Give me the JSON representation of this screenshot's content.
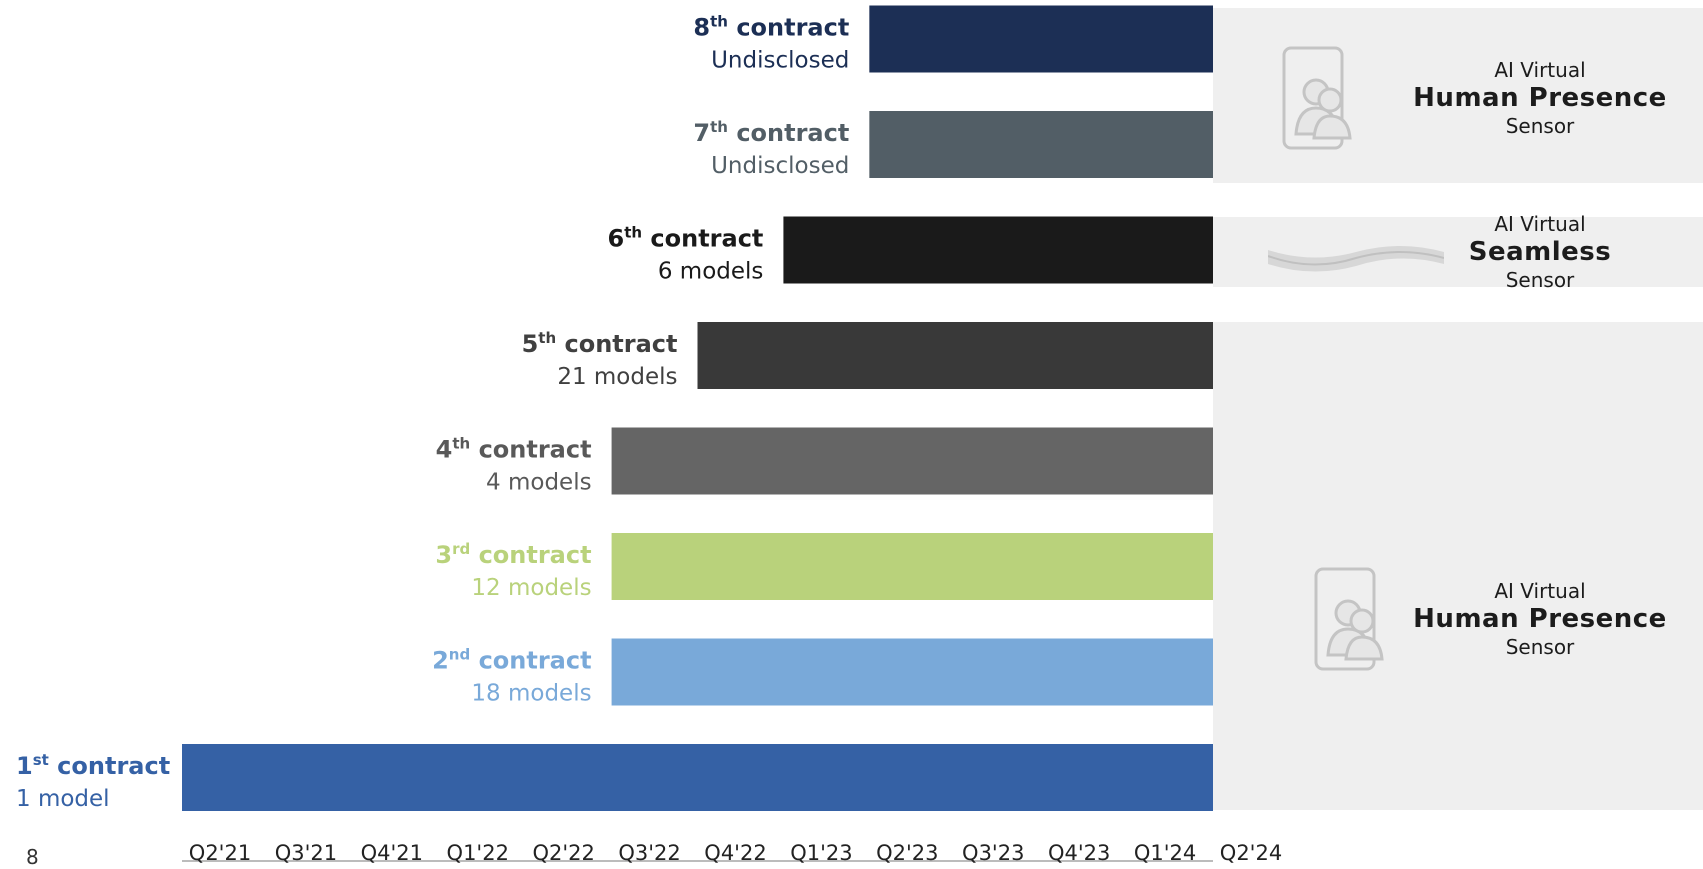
{
  "page_number": "8",
  "categories": {
    "top": {
      "line1": "AI Virtual",
      "line2": "Human Presence",
      "line3": "Sensor"
    },
    "mid": {
      "line1": "AI Virtual",
      "line2": "Seamless",
      "line3": "Sensor"
    },
    "bot": {
      "line1": "AI Virtual",
      "line2": "Human Presence",
      "line3": "Sensor"
    }
  },
  "icons": {
    "presence": "person-phone-icon",
    "seamless": "wave-band-icon"
  },
  "colors": {
    "c1": "#3561a5",
    "c2": "#79a9d9",
    "c3": "#b9d27b",
    "c4": "#656565",
    "c5": "#393939",
    "c6": "#1a1a1a",
    "c7": "#525e66",
    "c8": "#1c2f55",
    "panel": "#efefef",
    "axis_line": "#a6a6a6"
  },
  "chart_data": {
    "type": "bar",
    "orientation": "horizontal",
    "x_ticks": [
      "Q2'21",
      "Q3'21",
      "Q4'21",
      "Q1'22",
      "Q2'22",
      "Q3'22",
      "Q4'22",
      "Q1'23",
      "Q2'23",
      "Q3'23",
      "Q4'23",
      "Q1'24",
      "Q2'24"
    ],
    "x_range": [
      "Q2'21",
      "Q2'24"
    ],
    "bars": [
      {
        "ordinal": "1",
        "suffix": "st",
        "label": "contract",
        "detail": "1 model",
        "models": 1,
        "start": "Q2'21",
        "end": "Q2'24",
        "color": "#3561a5",
        "text_color": "#3561a5"
      },
      {
        "ordinal": "2",
        "suffix": "nd",
        "label": "contract",
        "detail": "18 models",
        "models": 18,
        "start": "Q3'22",
        "end": "Q2'24",
        "color": "#79a9d9",
        "text_color": "#79a9d9"
      },
      {
        "ordinal": "3",
        "suffix": "rd",
        "label": "contract",
        "detail": "12 models",
        "models": 12,
        "start": "Q3'22",
        "end": "Q2'24",
        "color": "#b9d27b",
        "text_color": "#b9d27b"
      },
      {
        "ordinal": "4",
        "suffix": "th",
        "label": "contract",
        "detail": "4 models",
        "models": 4,
        "start": "Q3'22",
        "end": "Q2'24",
        "color": "#656565",
        "text_color": "#595959"
      },
      {
        "ordinal": "5",
        "suffix": "th",
        "label": "contract",
        "detail": "21 models",
        "models": 21,
        "start": "Q4'22",
        "end": "Q2'24",
        "color": "#393939",
        "text_color": "#404040"
      },
      {
        "ordinal": "6",
        "suffix": "th",
        "label": "contract",
        "detail": "6 models",
        "models": 6,
        "start": "Q1'23",
        "end": "Q2'24",
        "color": "#1a1a1a",
        "text_color": "#1a1a1a"
      },
      {
        "ordinal": "7",
        "suffix": "th",
        "label": "contract",
        "detail": "Undisclosed",
        "models": null,
        "start": "Q2'23",
        "end": "Q2'24",
        "color": "#525e66",
        "text_color": "#525e66"
      },
      {
        "ordinal": "8",
        "suffix": "th",
        "label": "contract",
        "detail": "Undisclosed",
        "models": null,
        "start": "Q2'23",
        "end": "Q2'24",
        "color": "#1c2f55",
        "text_color": "#1c2f55"
      }
    ],
    "legend": "none",
    "grid": false
  }
}
